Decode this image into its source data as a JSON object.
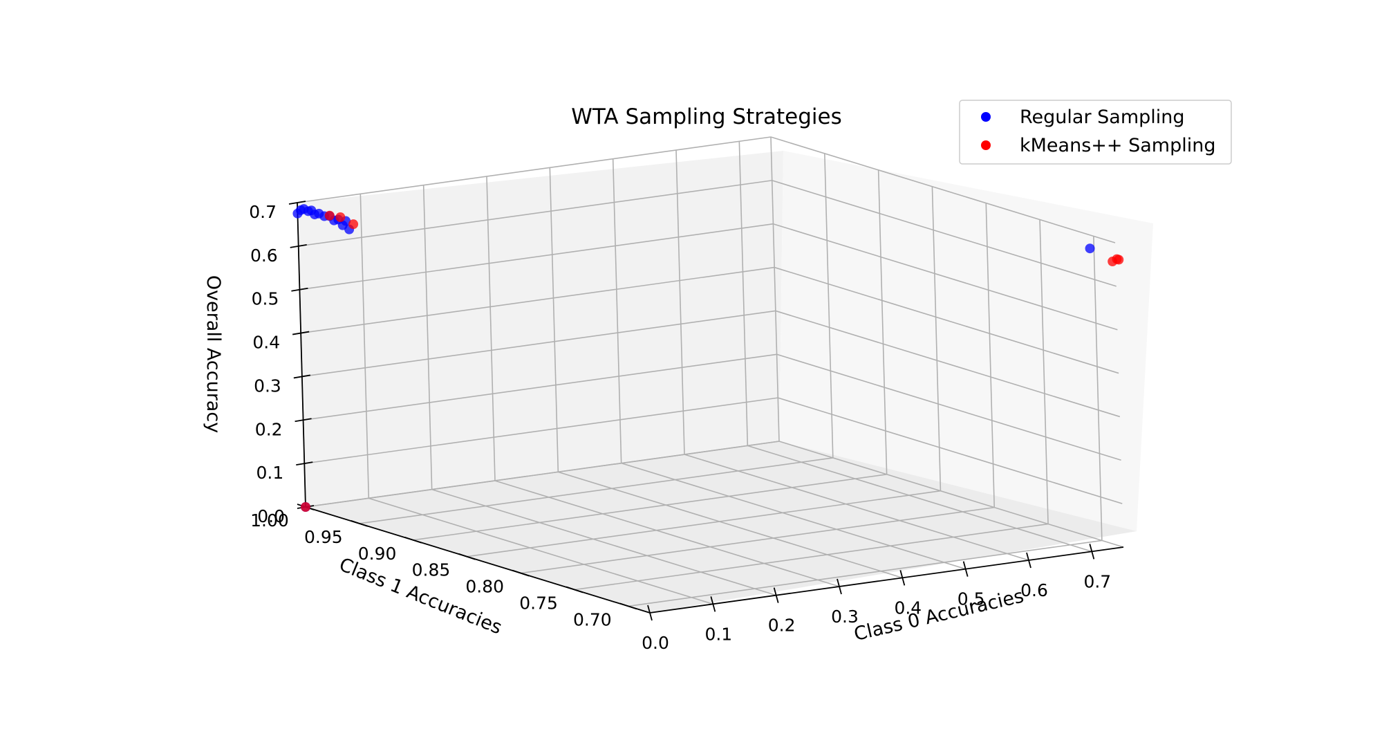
{
  "chart_data": {
    "type": "scatter",
    "projection": "3d",
    "title": "WTA Sampling Strategies",
    "xlabel": "Class 0 Accuracies",
    "ylabel": "Class 1 Accuracies",
    "zlabel": "Overall Accuracy",
    "xlim": [
      0.0,
      0.75
    ],
    "ylim": [
      0.68,
      1.0
    ],
    "zlim": [
      0.0,
      0.7
    ],
    "x_ticks": [
      "0.0",
      "0.1",
      "0.2",
      "0.3",
      "0.4",
      "0.5",
      "0.6",
      "0.7"
    ],
    "y_ticks": [
      "1.00",
      "0.95",
      "0.90",
      "0.85",
      "0.80",
      "0.75",
      "0.70"
    ],
    "z_ticks": [
      "0.0",
      "0.1",
      "0.2",
      "0.3",
      "0.4",
      "0.5",
      "0.6",
      "0.7"
    ],
    "grid": true,
    "legend_position": "top-right",
    "series": [
      {
        "name": "Regular Sampling",
        "color": "#0000ff",
        "points": [
          {
            "x": 0.0,
            "y": 1.0,
            "z": 0.675
          },
          {
            "x": 0.0,
            "y": 0.997,
            "z": 0.685
          },
          {
            "x": 0.0,
            "y": 0.994,
            "z": 0.69
          },
          {
            "x": 0.0,
            "y": 0.99,
            "z": 0.688
          },
          {
            "x": 0.0,
            "y": 0.987,
            "z": 0.692
          },
          {
            "x": 0.0,
            "y": 0.984,
            "z": 0.685
          },
          {
            "x": 0.0,
            "y": 0.98,
            "z": 0.69
          },
          {
            "x": 0.0,
            "y": 0.975,
            "z": 0.688
          },
          {
            "x": 0.0,
            "y": 0.97,
            "z": 0.692
          },
          {
            "x": 0.0,
            "y": 0.966,
            "z": 0.685
          },
          {
            "x": 0.0,
            "y": 0.962,
            "z": 0.69
          },
          {
            "x": 0.0,
            "y": 0.958,
            "z": 0.68
          },
          {
            "x": 0.0,
            "y": 0.955,
            "z": 0.692
          },
          {
            "x": 0.0,
            "y": 0.952,
            "z": 0.675
          },
          {
            "x": 0.0,
            "y": 1.0,
            "z": 0.0
          },
          {
            "x": 0.71,
            "y": 0.68,
            "z": 0.695
          }
        ]
      },
      {
        "name": "kMeans++ Sampling",
        "color": "#ff0000",
        "points": [
          {
            "x": 0.0,
            "y": 0.97,
            "z": 0.693
          },
          {
            "x": 0.0,
            "y": 0.96,
            "z": 0.697
          },
          {
            "x": 0.0,
            "y": 0.948,
            "z": 0.69
          },
          {
            "x": 0.0,
            "y": 1.0,
            "z": 0.0
          },
          {
            "x": 0.745,
            "y": 0.68,
            "z": 0.658
          },
          {
            "x": 0.752,
            "y": 0.68,
            "z": 0.662
          },
          {
            "x": 0.755,
            "y": 0.68,
            "z": 0.66
          }
        ]
      }
    ]
  }
}
